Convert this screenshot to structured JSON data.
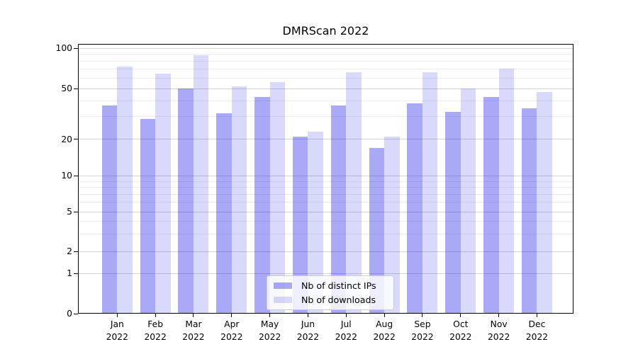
{
  "chart_data": {
    "type": "bar",
    "title": "DMRScan 2022",
    "categories": [
      "Jan 2022",
      "Feb 2022",
      "Mar 2022",
      "Apr 2022",
      "May 2022",
      "Jun 2022",
      "Jul 2022",
      "Aug 2022",
      "Sep 2022",
      "Oct 2022",
      "Nov 2022",
      "Dec 2022"
    ],
    "x_tick_months": [
      "Jan",
      "Feb",
      "Mar",
      "Apr",
      "May",
      "Jun",
      "Jul",
      "Aug",
      "Sep",
      "Oct",
      "Nov",
      "Dec"
    ],
    "x_tick_year": "2022",
    "series": [
      {
        "name": "Nb of distinct IPs",
        "color": "rgba(10,10,235,0.35)",
        "swatch_hex": "#a9a9f8",
        "values": [
          37,
          29,
          50,
          32,
          43,
          21,
          37,
          17,
          38,
          33,
          43,
          35
        ]
      },
      {
        "name": "Nb of downloads",
        "color": "rgba(10,10,235,0.155)",
        "swatch_hex": "#d9d9fc",
        "values": [
          73,
          65,
          89,
          52,
          56,
          23,
          66,
          21,
          66,
          50,
          70,
          47
        ]
      }
    ],
    "y_axis": {
      "scale": "symlog",
      "major_ticks": [
        0,
        1,
        2,
        5,
        10,
        20,
        50,
        100
      ],
      "minor_ticks": [
        3,
        4,
        6,
        7,
        8,
        9,
        30,
        40,
        60,
        70,
        80,
        90
      ],
      "ylim": [
        0,
        108
      ]
    },
    "grid": true,
    "legend_position": "lower center",
    "colors": {
      "grid_major": "#d4d4d4",
      "grid_minor": "#ececec",
      "spine": "#000000",
      "legend_border": "#cccccc",
      "background": "#ffffff"
    }
  }
}
